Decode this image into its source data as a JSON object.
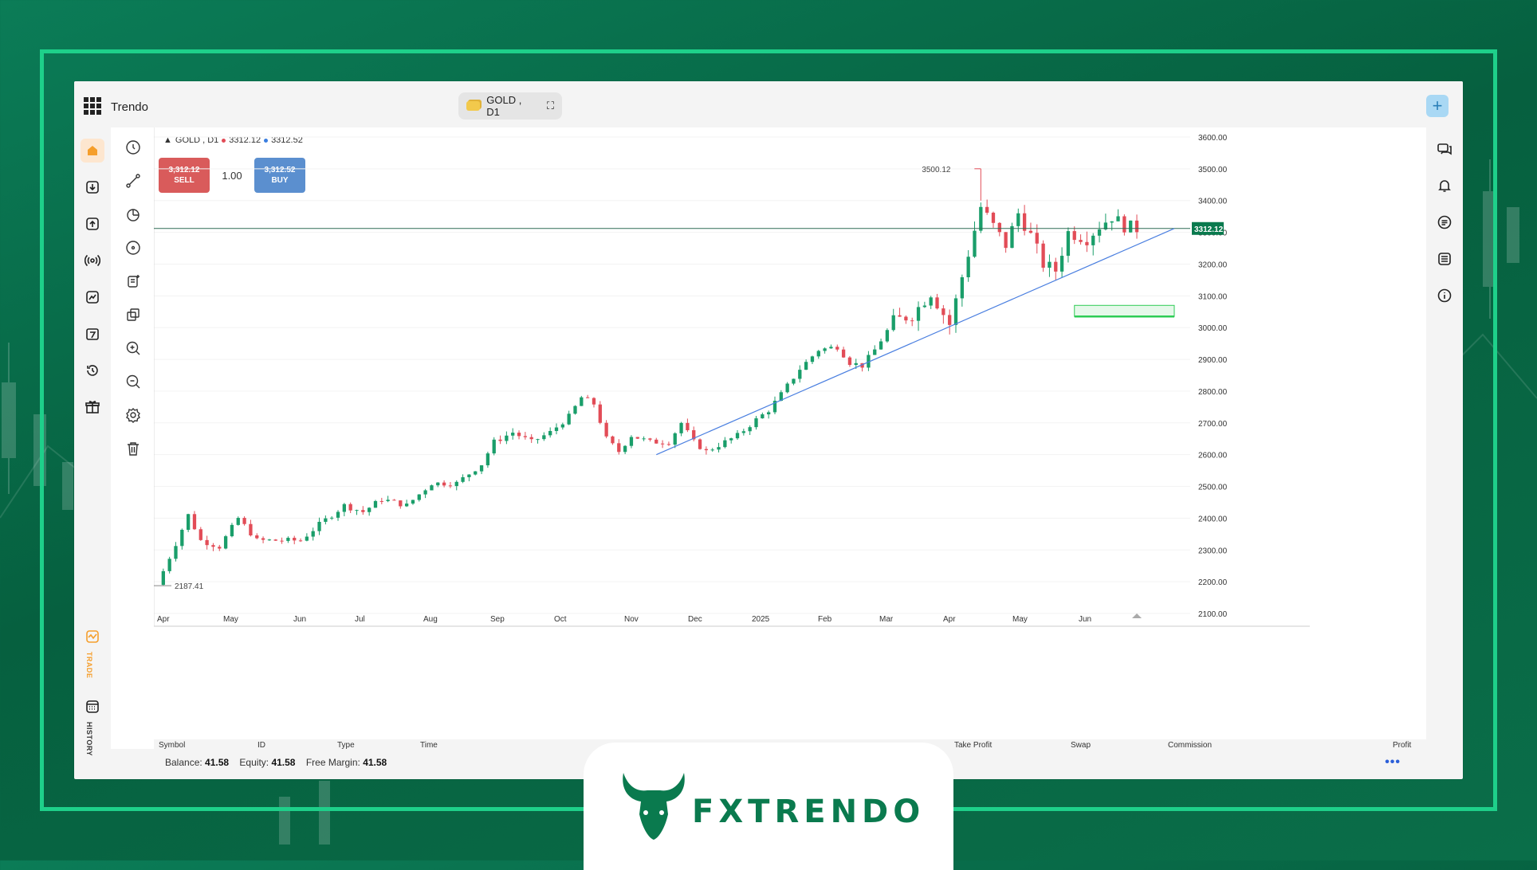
{
  "app": {
    "name": "Trendo",
    "symbol_pill": "GOLD , D1"
  },
  "chart_header": {
    "symbol": "GOLD , D1",
    "bid": "3312.12",
    "ask": "3312.52"
  },
  "trade": {
    "sell_price": "3,312.12",
    "sell_label": "SELL",
    "lots": "1.00",
    "buy_price": "3,312.52",
    "buy_label": "BUY"
  },
  "left_rail": {
    "trade_label": "TRADE",
    "history_label": "HISTORY"
  },
  "footer": {
    "columns": [
      "Symbol",
      "ID",
      "Type",
      "Time",
      "Take Profit",
      "Swap",
      "Commission",
      "Profit"
    ],
    "balance_label": "Balance:",
    "balance": "41.58",
    "equity_label": "Equity:",
    "equity": "41.58",
    "free_margin_label": "Free Margin:",
    "free_margin": "41.58",
    "more": "•••"
  },
  "brand_logo": "FXTRENDO",
  "colors": {
    "accent": "#0a7a4e",
    "up": "#1a9e6a",
    "down": "#e24c57",
    "trendline": "#4a7fe0"
  },
  "chart_data": {
    "type": "candlestick",
    "symbol": "GOLD",
    "timeframe": "D1",
    "x_ticks": [
      "Apr",
      "May",
      "Jun",
      "Jul",
      "Aug",
      "Sep",
      "Oct",
      "Nov",
      "Dec",
      "2025",
      "Feb",
      "Mar",
      "Apr",
      "May",
      "Jun"
    ],
    "y_ticks": [
      "3600.00",
      "3500.00",
      "3400.00",
      "3300.00",
      "3200.00",
      "3100.00",
      "3000.00",
      "2900.00",
      "2800.00",
      "2700.00",
      "2600.00",
      "2500.00",
      "2400.00",
      "2300.00",
      "2200.00",
      "2100.00"
    ],
    "ylim": [
      2100,
      3600
    ],
    "current_price": "3312.12",
    "high_label": "3500.12",
    "low_label": "2187.41",
    "path": [
      [
        0,
        2190
      ],
      [
        3,
        2320
      ],
      [
        5,
        2410
      ],
      [
        7,
        2330
      ],
      [
        10,
        2310
      ],
      [
        13,
        2400
      ],
      [
        16,
        2330
      ],
      [
        19,
        2330
      ],
      [
        23,
        2330
      ],
      [
        26,
        2380
      ],
      [
        30,
        2440
      ],
      [
        33,
        2420
      ],
      [
        36,
        2460
      ],
      [
        40,
        2440
      ],
      [
        44,
        2510
      ],
      [
        48,
        2510
      ],
      [
        52,
        2570
      ],
      [
        54,
        2640
      ],
      [
        57,
        2670
      ],
      [
        60,
        2640
      ],
      [
        63,
        2670
      ],
      [
        66,
        2720
      ],
      [
        68,
        2780
      ],
      [
        70,
        2760
      ],
      [
        72,
        2650
      ],
      [
        74,
        2610
      ],
      [
        76,
        2660
      ],
      [
        79,
        2640
      ],
      [
        82,
        2640
      ],
      [
        84,
        2700
      ],
      [
        86,
        2640
      ],
      [
        88,
        2610
      ],
      [
        90,
        2630
      ],
      [
        93,
        2660
      ],
      [
        96,
        2710
      ],
      [
        98,
        2740
      ],
      [
        100,
        2790
      ],
      [
        103,
        2870
      ],
      [
        106,
        2930
      ],
      [
        109,
        2940
      ],
      [
        111,
        2890
      ],
      [
        113,
        2880
      ],
      [
        115,
        2930
      ],
      [
        118,
        3020
      ],
      [
        121,
        3040
      ],
      [
        124,
        3110
      ],
      [
        127,
        3010
      ],
      [
        129,
        3160
      ],
      [
        132,
        3380
      ],
      [
        134,
        3320
      ],
      [
        136,
        3260
      ],
      [
        138,
        3360
      ],
      [
        140,
        3290
      ],
      [
        142,
        3200
      ],
      [
        144,
        3180
      ],
      [
        146,
        3300
      ],
      [
        149,
        3280
      ],
      [
        151,
        3320
      ],
      [
        153,
        3350
      ],
      [
        155,
        3320
      ],
      [
        157,
        3312
      ]
    ],
    "trendline": {
      "from": [
        80,
        2600
      ],
      "to": [
        163,
        3312
      ]
    },
    "zone": {
      "y_top": 3070,
      "y_bottom": 3035
    }
  }
}
